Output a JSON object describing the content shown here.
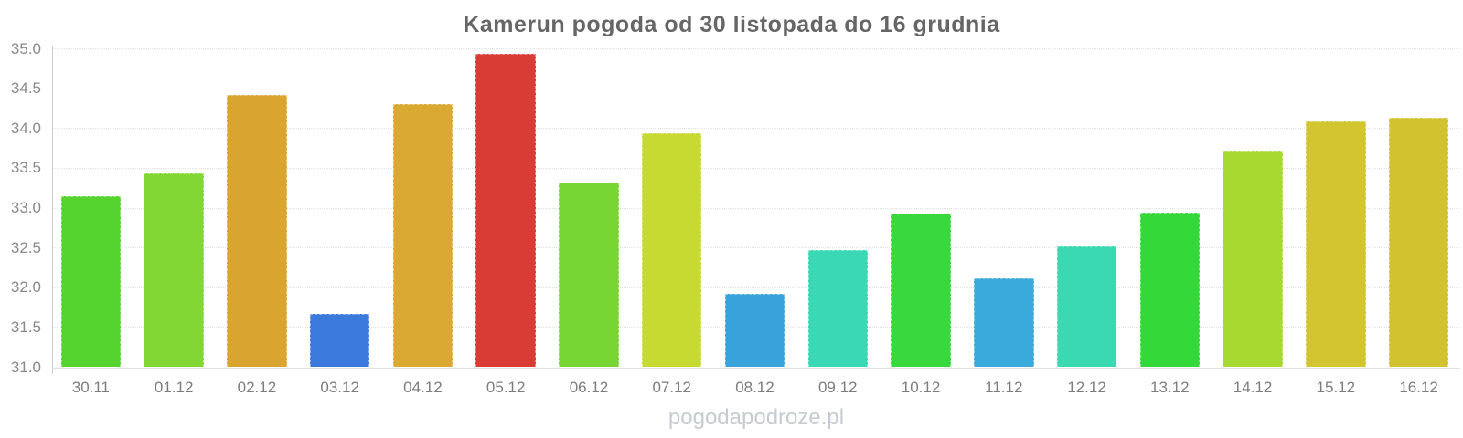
{
  "title": "Kamerun pogoda od 30 listopada do 16 grudnia",
  "watermark": "pogodapodroze.pl",
  "chart_data": {
    "type": "bar",
    "title": "Kamerun pogoda od 30 listopada do 16 grudnia",
    "categories": [
      "30.11",
      "01.12",
      "02.12",
      "03.12",
      "04.12",
      "05.12",
      "06.12",
      "07.12",
      "08.12",
      "09.12",
      "10.12",
      "11.12",
      "12.12",
      "13.12",
      "14.12",
      "15.12",
      "16.12"
    ],
    "values": [
      33.14,
      33.43,
      34.41,
      31.67,
      34.3,
      34.93,
      33.31,
      33.93,
      31.92,
      32.47,
      32.92,
      32.11,
      32.51,
      32.94,
      33.7,
      34.08,
      34.13
    ],
    "bar_colors": [
      "#55d32e",
      "#82d734",
      "#d9a530",
      "#3c79dc",
      "#d9a931",
      "#d93b35",
      "#77d633",
      "#c6da31",
      "#38a3db",
      "#3bd8b5",
      "#37d93e",
      "#3aa9dc",
      "#3bd9b2",
      "#34d939",
      "#a8d930",
      "#d3c52f",
      "#d2c22f"
    ],
    "xlabel": "",
    "ylabel": "",
    "ylim": [
      31.0,
      35.0
    ],
    "ytick_step": 0.5,
    "yticks": [
      "31.0",
      "31.5",
      "32.0",
      "32.5",
      "33.0",
      "33.5",
      "34.0",
      "34.5",
      "35.0"
    ],
    "grid": true,
    "legend": false,
    "units": "°C"
  },
  "colors": {
    "title": "#666666",
    "axis_label": "#8a8a8a",
    "x_label": "#7d7d7d",
    "gridline": "#e2e2e2",
    "axis_line": "#cccccc",
    "watermark": "#c5cbd1",
    "background": "#ffffff"
  }
}
